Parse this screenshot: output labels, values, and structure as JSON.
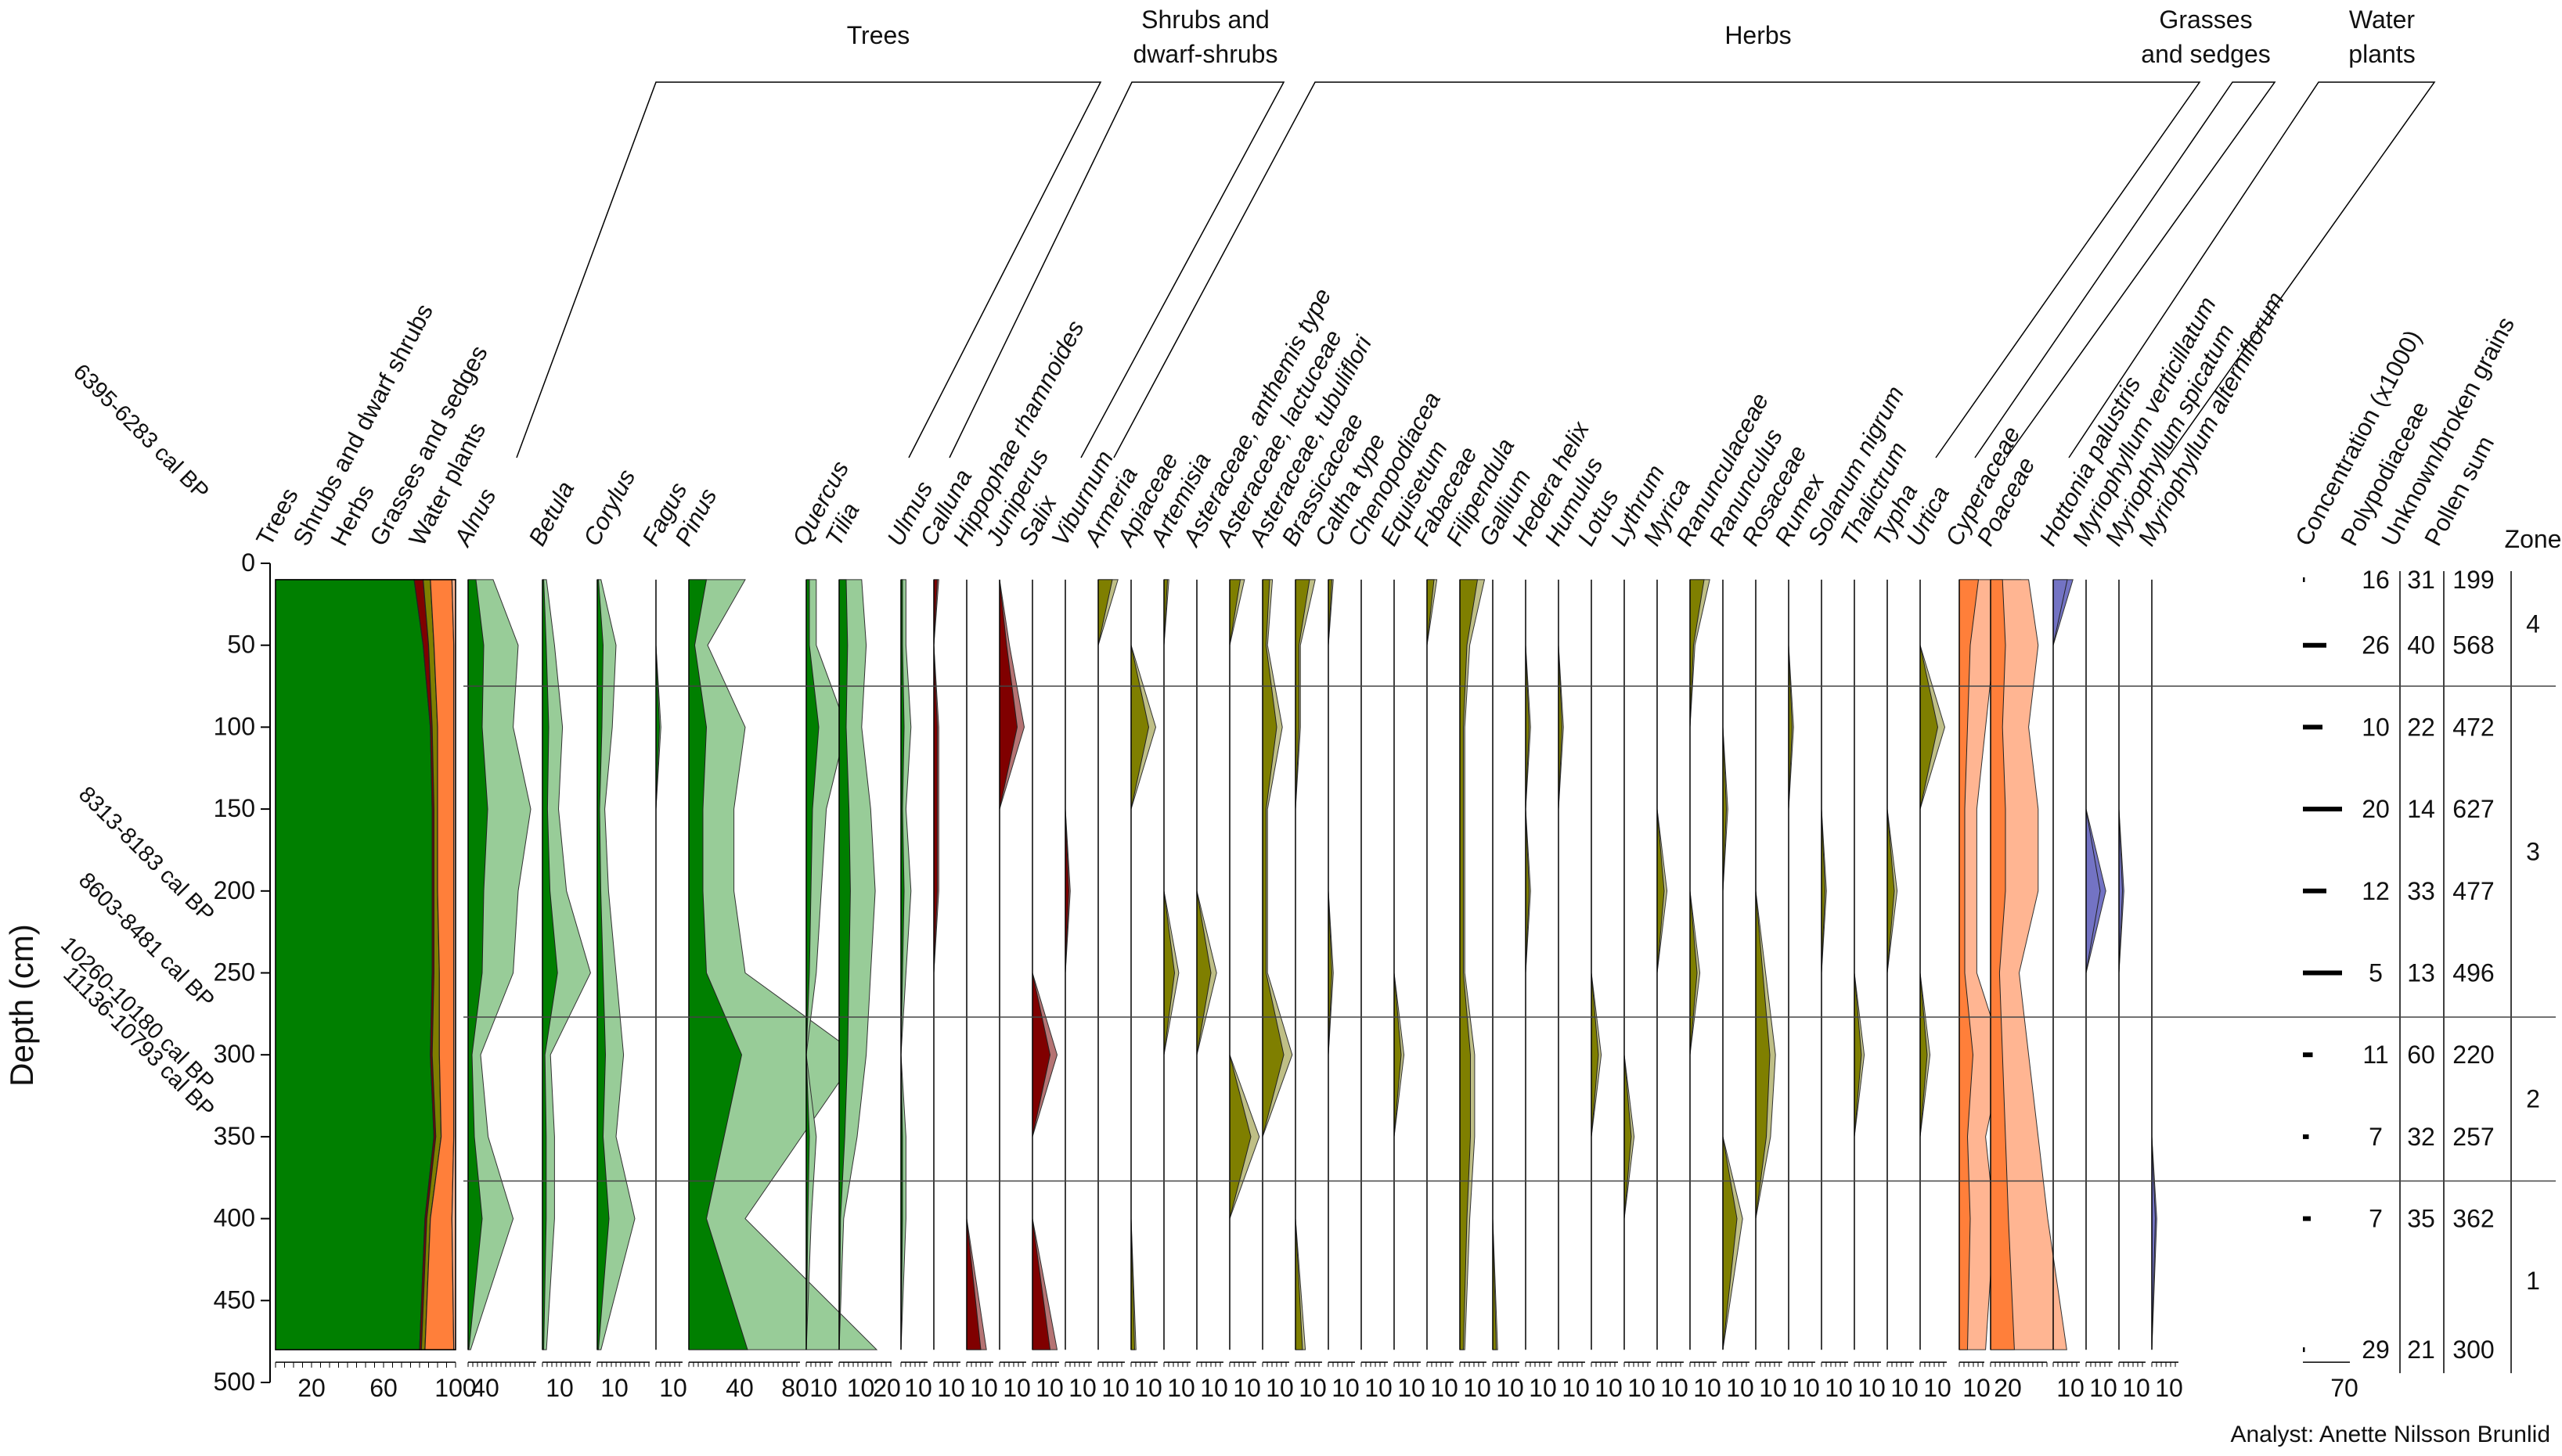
{
  "chart_data": {
    "type": "area",
    "subtype": "pollen-diagram",
    "ylabel": "Depth (cm)",
    "y_ticks": [
      0,
      50,
      100,
      150,
      200,
      250,
      300,
      350,
      400,
      450,
      500
    ],
    "ylim": [
      0,
      500
    ],
    "groups": [
      "Trees",
      "Shrubs and dwarf-shrubs",
      "Herbs",
      "Grasses and sedges",
      "Water plants"
    ],
    "group_lines": [
      [
        "Shrubs and",
        "dwarf-shrubs"
      ],
      [
        "Grasses",
        "and sedges"
      ],
      [
        "Water",
        "plants"
      ]
    ],
    "dates": [
      "6395-6283 cal BP",
      "8313-8183 cal BP",
      "8603-8481 cal BP",
      "10260-10180 cal BP",
      "11136-10793 cal BP"
    ],
    "sample_depths": [
      10,
      50,
      100,
      150,
      200,
      250,
      300,
      350,
      400,
      480
    ],
    "summary": {
      "name_labels": [
        "Trees",
        "Shrubs and dwarf shrubs",
        "Herbs",
        "Grasses and sedges",
        "Water plants"
      ],
      "ticks": [
        "20",
        "60",
        "100"
      ],
      "trees": [
        77,
        82,
        86,
        87,
        87,
        87,
        86,
        88,
        83,
        80
      ],
      "shrubs": [
        5,
        3,
        1,
        1,
        1,
        1,
        1,
        1,
        1,
        1
      ],
      "herbs": [
        4,
        3,
        3,
        2,
        2,
        3,
        4,
        3,
        2,
        2
      ],
      "grasses": [
        12,
        11,
        9,
        9,
        9,
        8,
        8,
        7,
        12,
        16
      ],
      "water": [
        2,
        1,
        1,
        1,
        1,
        1,
        1,
        1,
        2,
        1
      ]
    },
    "taxa": [
      {
        "name": "Alnus",
        "group": "Trees",
        "ticks": [
          "40"
        ],
        "values": [
          10,
          20,
          18,
          25,
          20,
          18,
          5,
          8,
          18,
          1
        ],
        "x10": true
      },
      {
        "name": "Betula",
        "group": "Trees",
        "ticks": [
          "10"
        ],
        "values": [
          1,
          3,
          5,
          4,
          6,
          12,
          2,
          3,
          3,
          1
        ],
        "x10": true
      },
      {
        "name": "Corylus",
        "group": "Trees",
        "ticks": [
          "10"
        ],
        "values": [
          1,
          5,
          4,
          2,
          3,
          5,
          7,
          5,
          10,
          1
        ],
        "x10": true
      },
      {
        "name": "Fagus",
        "group": "Trees",
        "ticks": [
          "10"
        ],
        "values": [
          0,
          0,
          1,
          0,
          0,
          0,
          0,
          0,
          0,
          0
        ],
        "x10": false
      },
      {
        "name": "Pinus",
        "group": "Trees",
        "ticks": [
          "40",
          "80"
        ],
        "values": [
          15,
          5,
          15,
          12,
          12,
          15,
          45,
          30,
          15,
          50
        ],
        "x10": true
      },
      {
        "name": "Quercus",
        "group": "Trees",
        "ticks": [
          "10"
        ],
        "values": [
          2,
          2,
          8,
          4,
          3,
          2,
          0,
          2,
          1,
          0
        ],
        "x10": true
      },
      {
        "name": "Tilia",
        "group": "Trees",
        "ticks": [
          "10",
          "20"
        ],
        "values": [
          5,
          6,
          5,
          7,
          8,
          7,
          6,
          4,
          1,
          0
        ],
        "x10": true
      },
      {
        "name": "Ulmus",
        "group": "Trees",
        "ticks": [
          "10"
        ],
        "values": [
          1,
          1,
          2,
          1,
          2,
          1,
          0,
          1,
          1,
          0
        ],
        "x10": true
      },
      {
        "name": "Calluna",
        "group": "Shrubs",
        "ticks": [
          "10"
        ],
        "values": [
          1,
          0,
          1,
          1,
          1,
          0,
          0,
          0,
          0,
          0
        ],
        "x10": false
      },
      {
        "name": "Hippophae rhamnoides",
        "group": "Shrubs",
        "ticks": [
          "10"
        ],
        "values": [
          0,
          0,
          0,
          0,
          0,
          0,
          0,
          0,
          0,
          4
        ],
        "x10": false
      },
      {
        "name": "Juniperus",
        "group": "Shrubs",
        "ticks": [
          "10"
        ],
        "values": [
          0,
          2,
          5,
          0,
          0,
          0,
          0,
          0,
          0,
          0
        ],
        "x10": false
      },
      {
        "name": "Salix",
        "group": "Shrubs",
        "ticks": [
          "10"
        ],
        "values": [
          0,
          0,
          0,
          0,
          0,
          0,
          5,
          0,
          0,
          5
        ],
        "x10": false
      },
      {
        "name": "Viburnum",
        "group": "Shrubs",
        "ticks": [
          "10"
        ],
        "values": [
          0,
          0,
          0,
          0,
          1,
          0,
          0,
          0,
          0,
          0
        ],
        "x10": false
      },
      {
        "name": "Armeria",
        "group": "Herbs",
        "ticks": [
          "10"
        ],
        "values": [
          4,
          0,
          0,
          0,
          0,
          0,
          0,
          0,
          0,
          0
        ],
        "x10": false
      },
      {
        "name": "Apiaceae",
        "group": "Herbs",
        "ticks": [
          "10"
        ],
        "values": [
          0,
          0,
          5,
          0,
          0,
          0,
          0,
          0,
          0,
          1
        ],
        "x10": false
      },
      {
        "name": "Artemisia",
        "group": "Herbs",
        "ticks": [
          "10"
        ],
        "values": [
          1,
          0,
          0,
          0,
          0,
          3,
          0,
          0,
          0,
          0
        ],
        "x10": false
      },
      {
        "name": "Asteraceae, anthemis type",
        "group": "Herbs",
        "ticks": [
          "10"
        ],
        "values": [
          0,
          0,
          0,
          0,
          0,
          4,
          0,
          0,
          0,
          0
        ],
        "x10": false
      },
      {
        "name": "Asteraceae, lactuceae",
        "group": "Herbs",
        "ticks": [
          "10"
        ],
        "values": [
          3,
          0,
          0,
          0,
          0,
          0,
          0,
          6,
          0,
          0
        ],
        "x10": false
      },
      {
        "name": "Asteraceae, tubuliflori",
        "group": "Herbs",
        "ticks": [
          "10"
        ],
        "values": [
          2,
          1,
          4,
          1,
          1,
          1,
          6,
          0,
          0,
          0
        ],
        "x10": false
      },
      {
        "name": "Brassicaceae",
        "group": "Herbs",
        "ticks": [
          "10"
        ],
        "values": [
          4,
          1,
          1,
          0,
          0,
          0,
          0,
          0,
          0,
          2
        ],
        "x10": false
      },
      {
        "name": "Caltha type",
        "group": "Herbs",
        "ticks": [
          "10"
        ],
        "values": [
          1,
          0,
          0,
          0,
          0,
          1,
          0,
          0,
          0,
          0
        ],
        "x10": false
      },
      {
        "name": "Chenopodiacea",
        "group": "Herbs",
        "ticks": [
          "10"
        ],
        "values": [
          0,
          0,
          0,
          0,
          0,
          0,
          0,
          0,
          0,
          0
        ],
        "x10": false
      },
      {
        "name": "Equisetum",
        "group": "Herbs",
        "ticks": [
          "10"
        ],
        "values": [
          0,
          0,
          0,
          0,
          0,
          0,
          2,
          0,
          0,
          0
        ],
        "x10": false
      },
      {
        "name": "Fabaceae",
        "group": "Herbs",
        "ticks": [
          "10"
        ],
        "values": [
          2,
          0,
          0,
          0,
          0,
          0,
          0,
          0,
          0,
          0
        ],
        "x10": false
      },
      {
        "name": "Filipendula",
        "group": "Herbs",
        "ticks": [
          "10"
        ],
        "values": [
          5,
          2,
          1,
          1,
          1,
          1,
          3,
          3,
          2,
          1
        ],
        "x10": false
      },
      {
        "name": "Gallium",
        "group": "Herbs",
        "ticks": [
          "10"
        ],
        "values": [
          0,
          0,
          0,
          0,
          0,
          0,
          0,
          0,
          0,
          1
        ],
        "x10": false
      },
      {
        "name": "Hedera helix",
        "group": "Herbs",
        "ticks": [
          "10"
        ],
        "values": [
          0,
          0,
          1,
          0,
          1,
          0,
          0,
          0,
          0,
          0
        ],
        "x10": false
      },
      {
        "name": "Humulus",
        "group": "Herbs",
        "ticks": [
          "10"
        ],
        "values": [
          0,
          0,
          1,
          0,
          0,
          0,
          0,
          0,
          0,
          0
        ],
        "x10": false
      },
      {
        "name": "Lotus",
        "group": "Herbs",
        "ticks": [
          "10"
        ],
        "values": [
          0,
          0,
          0,
          0,
          0,
          0,
          2,
          0,
          0,
          0
        ],
        "x10": false
      },
      {
        "name": "Lythrum",
        "group": "Herbs",
        "ticks": [
          "10"
        ],
        "values": [
          0,
          0,
          0,
          0,
          0,
          0,
          0,
          2,
          0,
          0
        ],
        "x10": false
      },
      {
        "name": "Myrica",
        "group": "Herbs",
        "ticks": [
          "10"
        ],
        "values": [
          0,
          0,
          0,
          0,
          2,
          0,
          0,
          0,
          0,
          0
        ],
        "x10": false
      },
      {
        "name": "Ranunculaceae",
        "group": "Herbs",
        "ticks": [
          "10"
        ],
        "values": [
          4,
          1,
          0,
          0,
          0,
          2,
          0,
          0,
          0,
          0
        ],
        "x10": false
      },
      {
        "name": "Ranunculus",
        "group": "Herbs",
        "ticks": [
          "10"
        ],
        "values": [
          0,
          0,
          0,
          1,
          0,
          0,
          0,
          0,
          4,
          0
        ],
        "x10": false
      },
      {
        "name": "Rosaceae",
        "group": "Herbs",
        "ticks": [
          "10"
        ],
        "values": [
          0,
          0,
          0,
          0,
          0,
          2,
          4,
          3,
          0,
          0
        ],
        "x10": false
      },
      {
        "name": "Rumex",
        "group": "Herbs",
        "ticks": [
          "10"
        ],
        "values": [
          0,
          0,
          1,
          0,
          0,
          0,
          0,
          0,
          0,
          0
        ],
        "x10": false
      },
      {
        "name": "Solanum nigrum",
        "group": "Herbs",
        "ticks": [
          "10"
        ],
        "values": [
          0,
          0,
          0,
          0,
          1,
          0,
          0,
          0,
          0,
          0
        ],
        "x10": false
      },
      {
        "name": "Thalictrum",
        "group": "Herbs",
        "ticks": [
          "10"
        ],
        "values": [
          0,
          0,
          0,
          0,
          0,
          0,
          2,
          0,
          0,
          0
        ],
        "x10": false
      },
      {
        "name": "Typha",
        "group": "Herbs",
        "ticks": [
          "10"
        ],
        "values": [
          0,
          0,
          0,
          0,
          2,
          0,
          0,
          0,
          0,
          0
        ],
        "x10": false
      },
      {
        "name": "Urtica",
        "group": "Herbs",
        "ticks": [
          "10"
        ],
        "values": [
          0,
          0,
          5,
          0,
          0,
          0,
          2,
          0,
          0,
          0
        ],
        "x10": false
      },
      {
        "name": "Cyperaceae",
        "group": "Grasses",
        "ticks": [
          "10"
        ],
        "values": [
          7,
          4,
          3,
          2,
          2,
          2,
          5,
          3,
          4,
          3
        ],
        "x10": true
      },
      {
        "name": "Poaceae",
        "group": "Grasses",
        "ticks": [
          "20"
        ],
        "values": [
          4,
          5,
          4,
          5,
          5,
          3,
          4,
          5,
          6,
          8
        ],
        "x10": true
      },
      {
        "name": "Hottonia palustris",
        "group": "Water",
        "ticks": [
          "10"
        ],
        "values": [
          4,
          0,
          0,
          0,
          0,
          0,
          0,
          0,
          0,
          0
        ],
        "x10": false
      },
      {
        "name": "Myriophyllum verticillatum",
        "group": "Water",
        "ticks": [
          "10"
        ],
        "values": [
          0,
          0,
          0,
          0,
          4,
          0,
          0,
          0,
          0,
          0
        ],
        "x10": false
      },
      {
        "name": "Myriophyllum spicatum",
        "group": "Water",
        "ticks": [
          "10"
        ],
        "values": [
          0,
          0,
          0,
          0,
          1,
          0,
          0,
          0,
          0,
          0
        ],
        "x10": false
      },
      {
        "name": "Myriophyllum alterniflorum",
        "group": "Water",
        "ticks": [
          "10"
        ],
        "values": [
          0,
          0,
          0,
          0,
          0,
          0,
          0,
          0,
          1,
          0
        ],
        "x10": false
      }
    ],
    "concentration": {
      "label": "Concentration (x1000)",
      "tick": "70",
      "values": [
        1,
        12,
        10,
        20,
        12,
        20,
        5,
        3,
        4,
        1
      ]
    },
    "polypodiaceae": {
      "label": "Polypodiaceae",
      "values": [
        "16",
        "26",
        "10",
        "20",
        "12",
        "5",
        "11",
        "7",
        "7",
        "29"
      ]
    },
    "unknown": {
      "label": "Unknown/broken grains",
      "values": [
        "31",
        "40",
        "22",
        "14",
        "33",
        "13",
        "60",
        "32",
        "35",
        "21"
      ]
    },
    "pollen_sum": {
      "label": "Pollen sum",
      "values": [
        "199",
        "568",
        "472",
        "627",
        "477",
        "496",
        "220",
        "257",
        "362",
        "300"
      ]
    },
    "zones": {
      "label": "Zone",
      "boundaries": [
        75,
        277,
        377
      ],
      "items": [
        {
          "name": "4",
          "center": 37
        },
        {
          "name": "3",
          "center": 176
        },
        {
          "name": "2",
          "center": 327
        },
        {
          "name": "1",
          "center": 438
        }
      ]
    },
    "colors": {
      "trees": "#007f00",
      "trees_x10": "#98cc98",
      "shrubs": "#b57373",
      "shrubs_dark": "#800000",
      "herbs": "#bfbf86",
      "herbs_dark": "#7f7f00",
      "grasses": "#ffb592",
      "grasses_dark": "#ff7f3a",
      "water": "#7373c4"
    }
  },
  "footer": {
    "analyst": "Analyst: Anette Nilsson Brunlid"
  }
}
